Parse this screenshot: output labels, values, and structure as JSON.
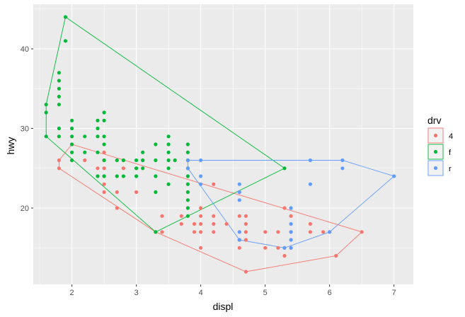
{
  "chart_data": {
    "type": "scatter",
    "xlabel": "displ",
    "ylabel": "hwy",
    "xlim": [
      1.4,
      7.3
    ],
    "ylim": [
      10.4,
      45.6
    ],
    "x_ticks": [
      2,
      3,
      4,
      5,
      6,
      7
    ],
    "y_ticks": [
      20,
      30,
      40
    ],
    "grid": true,
    "legend": {
      "title": "drv",
      "position": "right"
    },
    "series": [
      {
        "name": "4",
        "color": "#F8766D",
        "points": [
          [
            1.8,
            26
          ],
          [
            1.8,
            25
          ],
          [
            2.0,
            28
          ],
          [
            2.0,
            26
          ],
          [
            2.2,
            26
          ],
          [
            2.4,
            25
          ],
          [
            2.5,
            27
          ],
          [
            2.5,
            26
          ],
          [
            2.5,
            25
          ],
          [
            2.5,
            24
          ],
          [
            2.5,
            23
          ],
          [
            2.5,
            22
          ],
          [
            2.7,
            22
          ],
          [
            2.7,
            20
          ],
          [
            2.8,
            26
          ],
          [
            2.8,
            25
          ],
          [
            3.0,
            25
          ],
          [
            3.0,
            22
          ],
          [
            3.1,
            26
          ],
          [
            3.3,
            17
          ],
          [
            3.4,
            17
          ],
          [
            3.4,
            19
          ],
          [
            3.7,
            19
          ],
          [
            3.7,
            18
          ],
          [
            3.9,
            17
          ],
          [
            3.9,
            18
          ],
          [
            4.0,
            20
          ],
          [
            4.0,
            19
          ],
          [
            4.0,
            17
          ],
          [
            4.0,
            15
          ],
          [
            4.2,
            23
          ],
          [
            4.2,
            18
          ],
          [
            4.2,
            17
          ],
          [
            4.4,
            18
          ],
          [
            4.6,
            22
          ],
          [
            4.6,
            19
          ],
          [
            4.6,
            17
          ],
          [
            4.6,
            16
          ],
          [
            4.6,
            15
          ],
          [
            4.7,
            19
          ],
          [
            4.7,
            18
          ],
          [
            4.7,
            17
          ],
          [
            4.7,
            16
          ],
          [
            4.7,
            12
          ],
          [
            5.0,
            17
          ],
          [
            5.2,
            17
          ],
          [
            5.2,
            15
          ],
          [
            5.3,
            15
          ],
          [
            5.3,
            20
          ],
          [
            5.4,
            19
          ],
          [
            5.4,
            17
          ],
          [
            5.4,
            15
          ],
          [
            5.7,
            18
          ],
          [
            5.7,
            17
          ],
          [
            5.9,
            17
          ],
          [
            6.0,
            17
          ],
          [
            6.1,
            14
          ],
          [
            6.5,
            17
          ],
          [
            4.0,
            18
          ],
          [
            5.0,
            15
          ],
          [
            5.3,
            14
          ],
          [
            4.2,
            19
          ]
        ],
        "hull": [
          [
            1.8,
            25
          ],
          [
            1.8,
            26
          ],
          [
            2.0,
            28
          ],
          [
            6.5,
            17
          ],
          [
            6.1,
            14
          ],
          [
            4.7,
            12
          ],
          [
            3.3,
            17
          ]
        ]
      },
      {
        "name": "f",
        "color": "#00BA38",
        "points": [
          [
            1.6,
            33
          ],
          [
            1.6,
            32
          ],
          [
            1.6,
            29
          ],
          [
            1.8,
            37
          ],
          [
            1.8,
            36
          ],
          [
            1.8,
            35
          ],
          [
            1.8,
            34
          ],
          [
            1.8,
            33
          ],
          [
            1.8,
            30
          ],
          [
            1.8,
            29
          ],
          [
            1.9,
            44
          ],
          [
            1.9,
            41
          ],
          [
            2.0,
            31
          ],
          [
            2.0,
            30
          ],
          [
            2.0,
            29
          ],
          [
            2.0,
            28
          ],
          [
            2.0,
            27
          ],
          [
            2.0,
            26
          ],
          [
            2.2,
            29
          ],
          [
            2.2,
            27
          ],
          [
            2.4,
            31
          ],
          [
            2.4,
            30
          ],
          [
            2.4,
            29
          ],
          [
            2.4,
            27
          ],
          [
            2.4,
            24
          ],
          [
            2.5,
            32
          ],
          [
            2.5,
            31
          ],
          [
            2.5,
            29
          ],
          [
            2.5,
            28
          ],
          [
            2.5,
            26
          ],
          [
            2.5,
            24
          ],
          [
            2.7,
            26
          ],
          [
            2.7,
            24
          ],
          [
            2.8,
            26
          ],
          [
            2.8,
            24
          ],
          [
            3.0,
            26
          ],
          [
            3.0,
            25
          ],
          [
            3.0,
            24
          ],
          [
            3.1,
            27
          ],
          [
            3.1,
            26
          ],
          [
            3.1,
            25
          ],
          [
            3.3,
            28
          ],
          [
            3.3,
            26
          ],
          [
            3.3,
            24
          ],
          [
            3.3,
            22
          ],
          [
            3.3,
            17
          ],
          [
            3.5,
            29
          ],
          [
            3.5,
            28
          ],
          [
            3.5,
            27
          ],
          [
            3.5,
            26
          ],
          [
            3.5,
            25
          ],
          [
            3.5,
            23
          ],
          [
            3.6,
            26
          ],
          [
            3.8,
            28
          ],
          [
            3.8,
            27
          ],
          [
            3.8,
            26
          ],
          [
            3.8,
            25
          ],
          [
            3.8,
            24
          ],
          [
            3.8,
            23
          ],
          [
            3.8,
            22
          ],
          [
            3.8,
            21
          ],
          [
            3.8,
            20
          ],
          [
            3.8,
            19
          ],
          [
            5.3,
            25
          ]
        ],
        "hull": [
          [
            1.6,
            29
          ],
          [
            1.6,
            33
          ],
          [
            1.9,
            44
          ],
          [
            5.3,
            25
          ],
          [
            3.3,
            17
          ]
        ]
      },
      {
        "name": "r",
        "color": "#619CFF",
        "points": [
          [
            3.8,
            26
          ],
          [
            3.8,
            25
          ],
          [
            4.0,
            26
          ],
          [
            4.0,
            24
          ],
          [
            4.0,
            23
          ],
          [
            4.6,
            23
          ],
          [
            4.6,
            22
          ],
          [
            4.6,
            21
          ],
          [
            4.6,
            17
          ],
          [
            5.4,
            20
          ],
          [
            5.4,
            18
          ],
          [
            5.4,
            17
          ],
          [
            5.4,
            16
          ],
          [
            5.4,
            15
          ],
          [
            5.7,
            26
          ],
          [
            5.7,
            23
          ],
          [
            5.3,
            15
          ],
          [
            6.0,
            17
          ],
          [
            6.2,
            26
          ],
          [
            6.2,
            25
          ],
          [
            7.0,
            24
          ],
          [
            4.6,
            16
          ]
        ],
        "hull": [
          [
            3.8,
            25
          ],
          [
            3.8,
            26
          ],
          [
            6.2,
            26
          ],
          [
            7.0,
            24
          ],
          [
            6.0,
            17
          ],
          [
            5.3,
            15
          ],
          [
            4.6,
            16
          ]
        ]
      }
    ]
  }
}
